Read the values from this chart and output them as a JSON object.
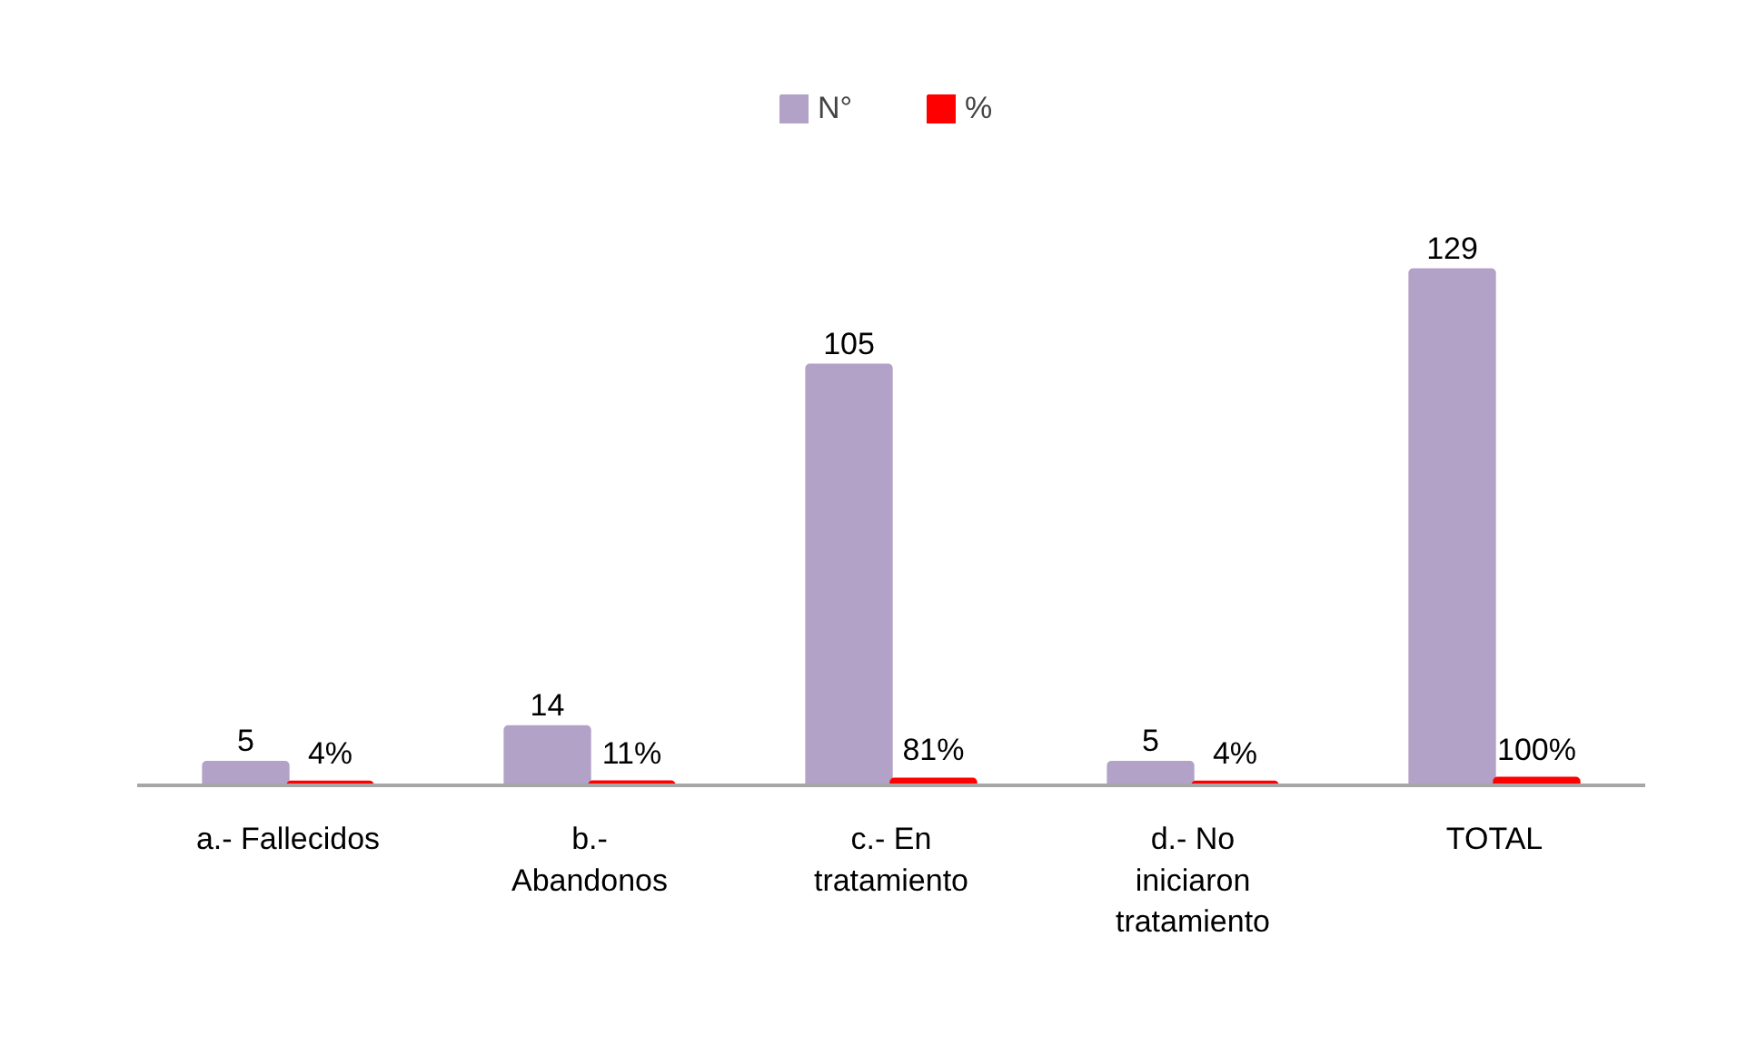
{
  "chart_data": {
    "type": "bar",
    "categories": [
      "a.- Fallecidos",
      "b.-\nAbandonos",
      "c.- En\ntratamiento",
      "d.- No\niniciaron\ntratamiento",
      "TOTAL"
    ],
    "series": [
      {
        "name": "N°",
        "color": "#b3a2c7",
        "values": [
          5,
          14,
          105,
          5,
          129
        ],
        "value_labels": [
          "5",
          "14",
          "105",
          "5",
          "129"
        ]
      },
      {
        "name": "%",
        "color": "#ff0000",
        "values": [
          0.04,
          0.11,
          0.81,
          0.04,
          1.0
        ],
        "value_labels": [
          "4%",
          "11%",
          "81%",
          "4%",
          "100%"
        ]
      }
    ],
    "legend": "top",
    "tick_labels": "x"
  }
}
